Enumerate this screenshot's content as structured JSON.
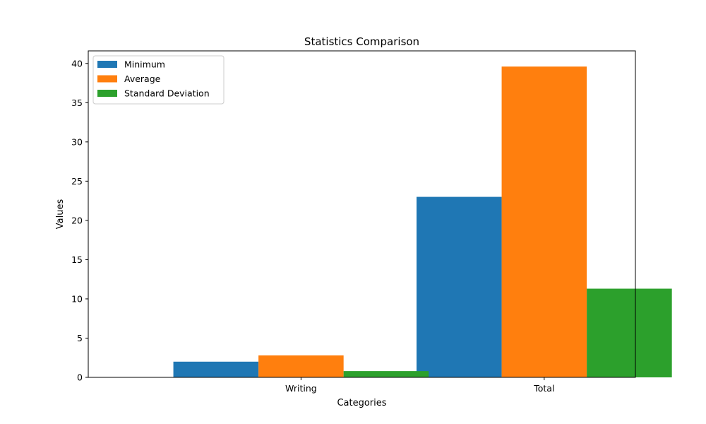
{
  "chart_data": {
    "type": "bar",
    "title": "Statistics Comparison",
    "xlabel": "Categories",
    "ylabel": "Values",
    "categories": [
      "Writing",
      "Total"
    ],
    "series": [
      {
        "name": "Minimum",
        "color": "#1f77b4",
        "values": [
          2,
          23
        ]
      },
      {
        "name": "Average",
        "color": "#ff7f0e",
        "values": [
          2.8,
          39.6
        ]
      },
      {
        "name": "Standard Deviation",
        "color": "#2ca02c",
        "values": [
          0.8,
          11.3
        ]
      }
    ],
    "ylim": [
      0,
      41.6
    ],
    "yticks": [
      0,
      5,
      10,
      15,
      20,
      25,
      30,
      35,
      40
    ],
    "grid": false,
    "legend_position": "top-left"
  }
}
